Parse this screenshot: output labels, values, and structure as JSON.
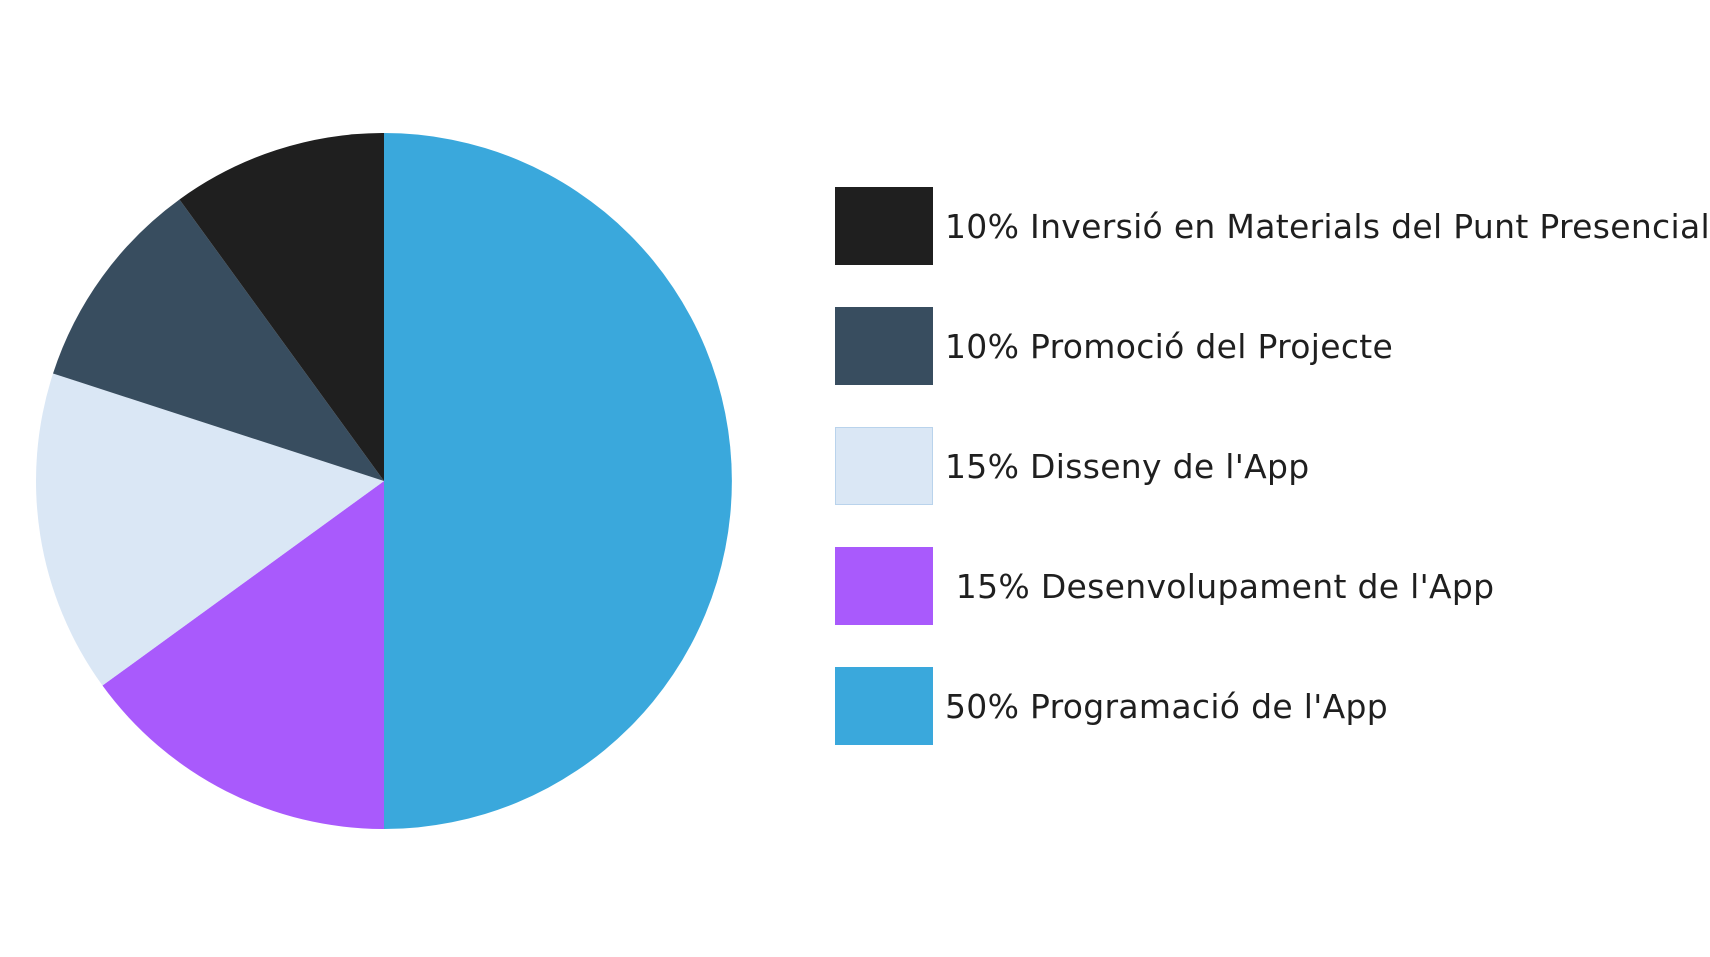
{
  "chart_data": {
    "type": "pie",
    "start_angle": "top, clockwise",
    "slices": [
      {
        "label": "50% Programació de l'App",
        "value": 50,
        "color": "#3aa8dc"
      },
      {
        "label": " 15% Desenvolupament de l'App",
        "value": 15,
        "color": "#a95afc"
      },
      {
        "label": "15% Disseny de l'App",
        "value": 15,
        "color": "#dae7f5"
      },
      {
        "label": "10% Promoció del Projecte",
        "value": 10,
        "color": "#384d5f"
      },
      {
        "label": "10% Inversió en Materials del Punt Presencial",
        "value": 10,
        "color": "#1f1f1f"
      }
    ],
    "legend": {
      "placement": "right",
      "order": [
        4,
        3,
        2,
        1,
        0
      ]
    }
  }
}
